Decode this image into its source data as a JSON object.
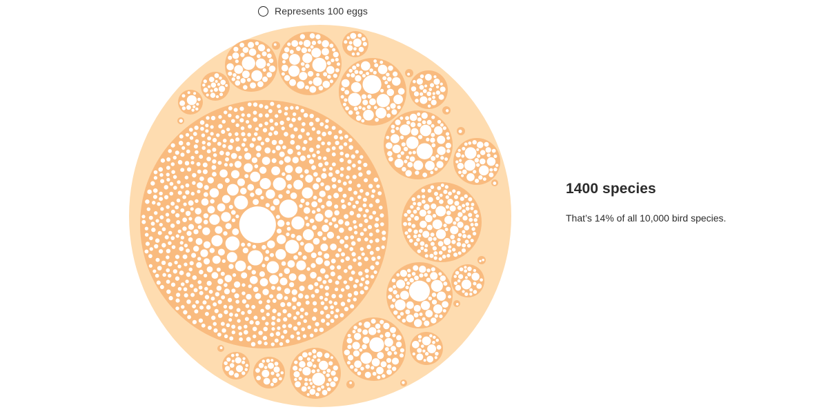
{
  "legend": {
    "label": "Represents 100 eggs",
    "marker_icon": "circle-outline-icon"
  },
  "info": {
    "heading": "1400 species",
    "text": "That’s 14% of all 10,000 bird species."
  },
  "colors": {
    "outer_fill": "#fedcb0",
    "group_fill": "#f9bb7f",
    "egg_fill": "#ffffff",
    "text": "#2b2b2b"
  }
}
